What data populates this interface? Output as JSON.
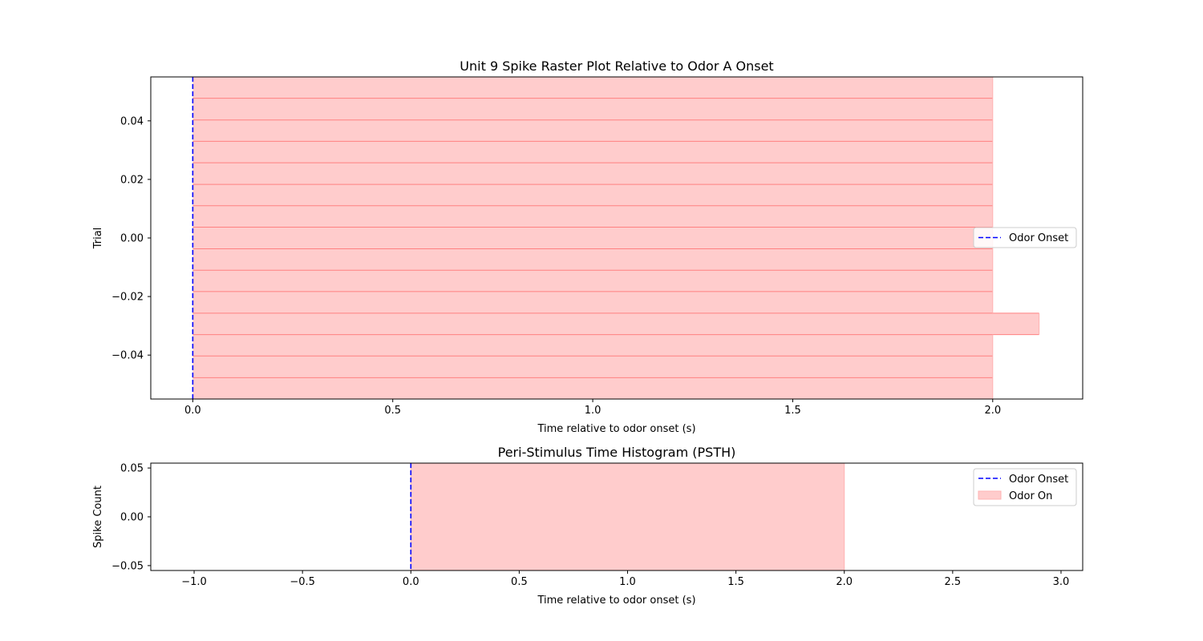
{
  "chart_data": [
    {
      "type": "raster",
      "title": "Unit 9 Spike Raster Plot Relative to Odor A Onset",
      "xlabel": "Time relative to odor onset (s)",
      "ylabel": "Trial",
      "xlim": [
        -0.105,
        2.225
      ],
      "ylim": [
        -0.055,
        0.055
      ],
      "xticks": [
        0.0,
        0.5,
        1.0,
        1.5,
        2.0
      ],
      "xtick_labels": [
        "0.0",
        "0.5",
        "1.0",
        "1.5",
        "2.0"
      ],
      "yticks": [
        -0.04,
        -0.02,
        0.0,
        0.02,
        0.04
      ],
      "ytick_labels": [
        "−0.04",
        "−0.02",
        "0.00",
        "0.02",
        "0.04"
      ],
      "odor_onset": 0.0,
      "odor_windows": [
        {
          "start": 0.0,
          "end": 2.0,
          "y0": 0.0477,
          "y1": 0.055
        },
        {
          "start": 0.0,
          "end": 2.0,
          "y0": 0.0403,
          "y1": 0.0477
        },
        {
          "start": 0.0,
          "end": 2.0,
          "y0": 0.033,
          "y1": 0.0403
        },
        {
          "start": 0.0,
          "end": 2.0,
          "y0": 0.0257,
          "y1": 0.033
        },
        {
          "start": 0.0,
          "end": 2.0,
          "y0": 0.0183,
          "y1": 0.0257
        },
        {
          "start": 0.0,
          "end": 2.0,
          "y0": 0.011,
          "y1": 0.0183
        },
        {
          "start": 0.0,
          "end": 2.0,
          "y0": 0.0037,
          "y1": 0.011
        },
        {
          "start": 0.0,
          "end": 2.0,
          "y0": -0.0037,
          "y1": 0.0037
        },
        {
          "start": 0.0,
          "end": 2.0,
          "y0": -0.011,
          "y1": -0.0037
        },
        {
          "start": 0.0,
          "end": 2.0,
          "y0": -0.0183,
          "y1": -0.011
        },
        {
          "start": 0.0,
          "end": 2.0,
          "y0": -0.0257,
          "y1": -0.0183
        },
        {
          "start": 0.0,
          "end": 2.116,
          "y0": -0.033,
          "y1": -0.0257
        },
        {
          "start": 0.0,
          "end": 2.0,
          "y0": -0.0403,
          "y1": -0.033
        },
        {
          "start": 0.0,
          "end": 2.0,
          "y0": -0.0477,
          "y1": -0.0403
        },
        {
          "start": 0.0,
          "end": 2.0,
          "y0": -0.055,
          "y1": -0.0477
        }
      ],
      "legend": [
        {
          "label": "Odor Onset",
          "style": "dashed",
          "color": "#0000ff"
        }
      ],
      "legend_loc": "center-right",
      "colors": {
        "onset": "#0000ff",
        "odor_fill": "#ffcccc",
        "odor_edge": "#ff8080"
      }
    },
    {
      "type": "histogram",
      "title": "Peri-Stimulus Time Histogram (PSTH)",
      "xlabel": "Time relative to odor onset (s)",
      "ylabel": "Spike Count",
      "xlim": [
        -1.2,
        3.1
      ],
      "ylim": [
        -0.055,
        0.055
      ],
      "xticks": [
        -1.0,
        -0.5,
        0.0,
        0.5,
        1.0,
        1.5,
        2.0,
        2.5,
        3.0
      ],
      "xtick_labels": [
        "−1.0",
        "−0.5",
        "0.0",
        "0.5",
        "1.0",
        "1.5",
        "2.0",
        "2.5",
        "3.0"
      ],
      "yticks": [
        -0.05,
        0.0,
        0.05
      ],
      "ytick_labels": [
        "−0.05",
        "0.00",
        "0.05"
      ],
      "values": [],
      "odor_onset": 0.0,
      "odor_window": {
        "start": 0.0,
        "end": 2.0
      },
      "legend": [
        {
          "label": "Odor Onset",
          "style": "dashed",
          "color": "#0000ff"
        },
        {
          "label": "Odor On",
          "style": "patch",
          "color": "#ffcccc"
        }
      ],
      "legend_loc": "upper-right",
      "colors": {
        "onset": "#0000ff",
        "odor_fill": "#ffcccc",
        "odor_edge": "#ffb3b3"
      }
    }
  ]
}
